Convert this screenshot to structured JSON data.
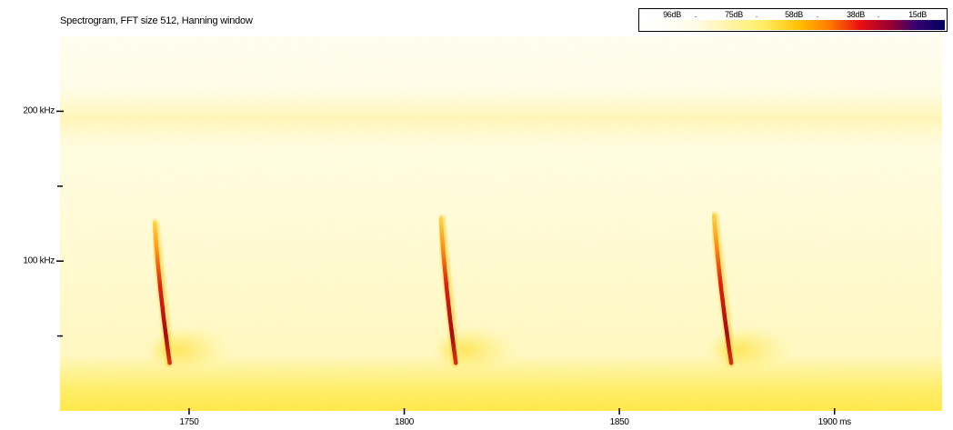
{
  "chart_data": {
    "type": "heatmap",
    "title": "Spectrogram, FFT size 512, Hanning window",
    "xlabel": "",
    "ylabel": "",
    "x_unit": "ms",
    "y_unit": "kHz",
    "xlim": [
      1720,
      1925
    ],
    "ylim": [
      0,
      250
    ],
    "x_ticks": [
      {
        "value": 1750,
        "label": "1750"
      },
      {
        "value": 1800,
        "label": "1800"
      },
      {
        "value": 1850,
        "label": "1850"
      },
      {
        "value": 1900,
        "label": "1900 ms"
      }
    ],
    "y_ticks": [
      {
        "value": 200,
        "label": "200 kHz"
      },
      {
        "value": 100,
        "label": "100 kHz"
      }
    ],
    "y_minor_ticks": [
      150,
      50
    ],
    "color_scale": {
      "labels": [
        "96dB",
        "75dB",
        "58dB",
        "38dB",
        "15dB"
      ],
      "colors": [
        "#ffffff",
        "#ffee66",
        "#ff7a00",
        "#e81010",
        "#000060"
      ]
    },
    "calls": [
      {
        "t_start": 1742.0,
        "t_end": 1745.5,
        "f_start": 125,
        "f_end": 32
      },
      {
        "t_start": 1808.5,
        "t_end": 1812.0,
        "f_start": 128,
        "f_end": 32
      },
      {
        "t_start": 1872.0,
        "t_end": 1876.0,
        "f_start": 130,
        "f_end": 32
      }
    ]
  }
}
